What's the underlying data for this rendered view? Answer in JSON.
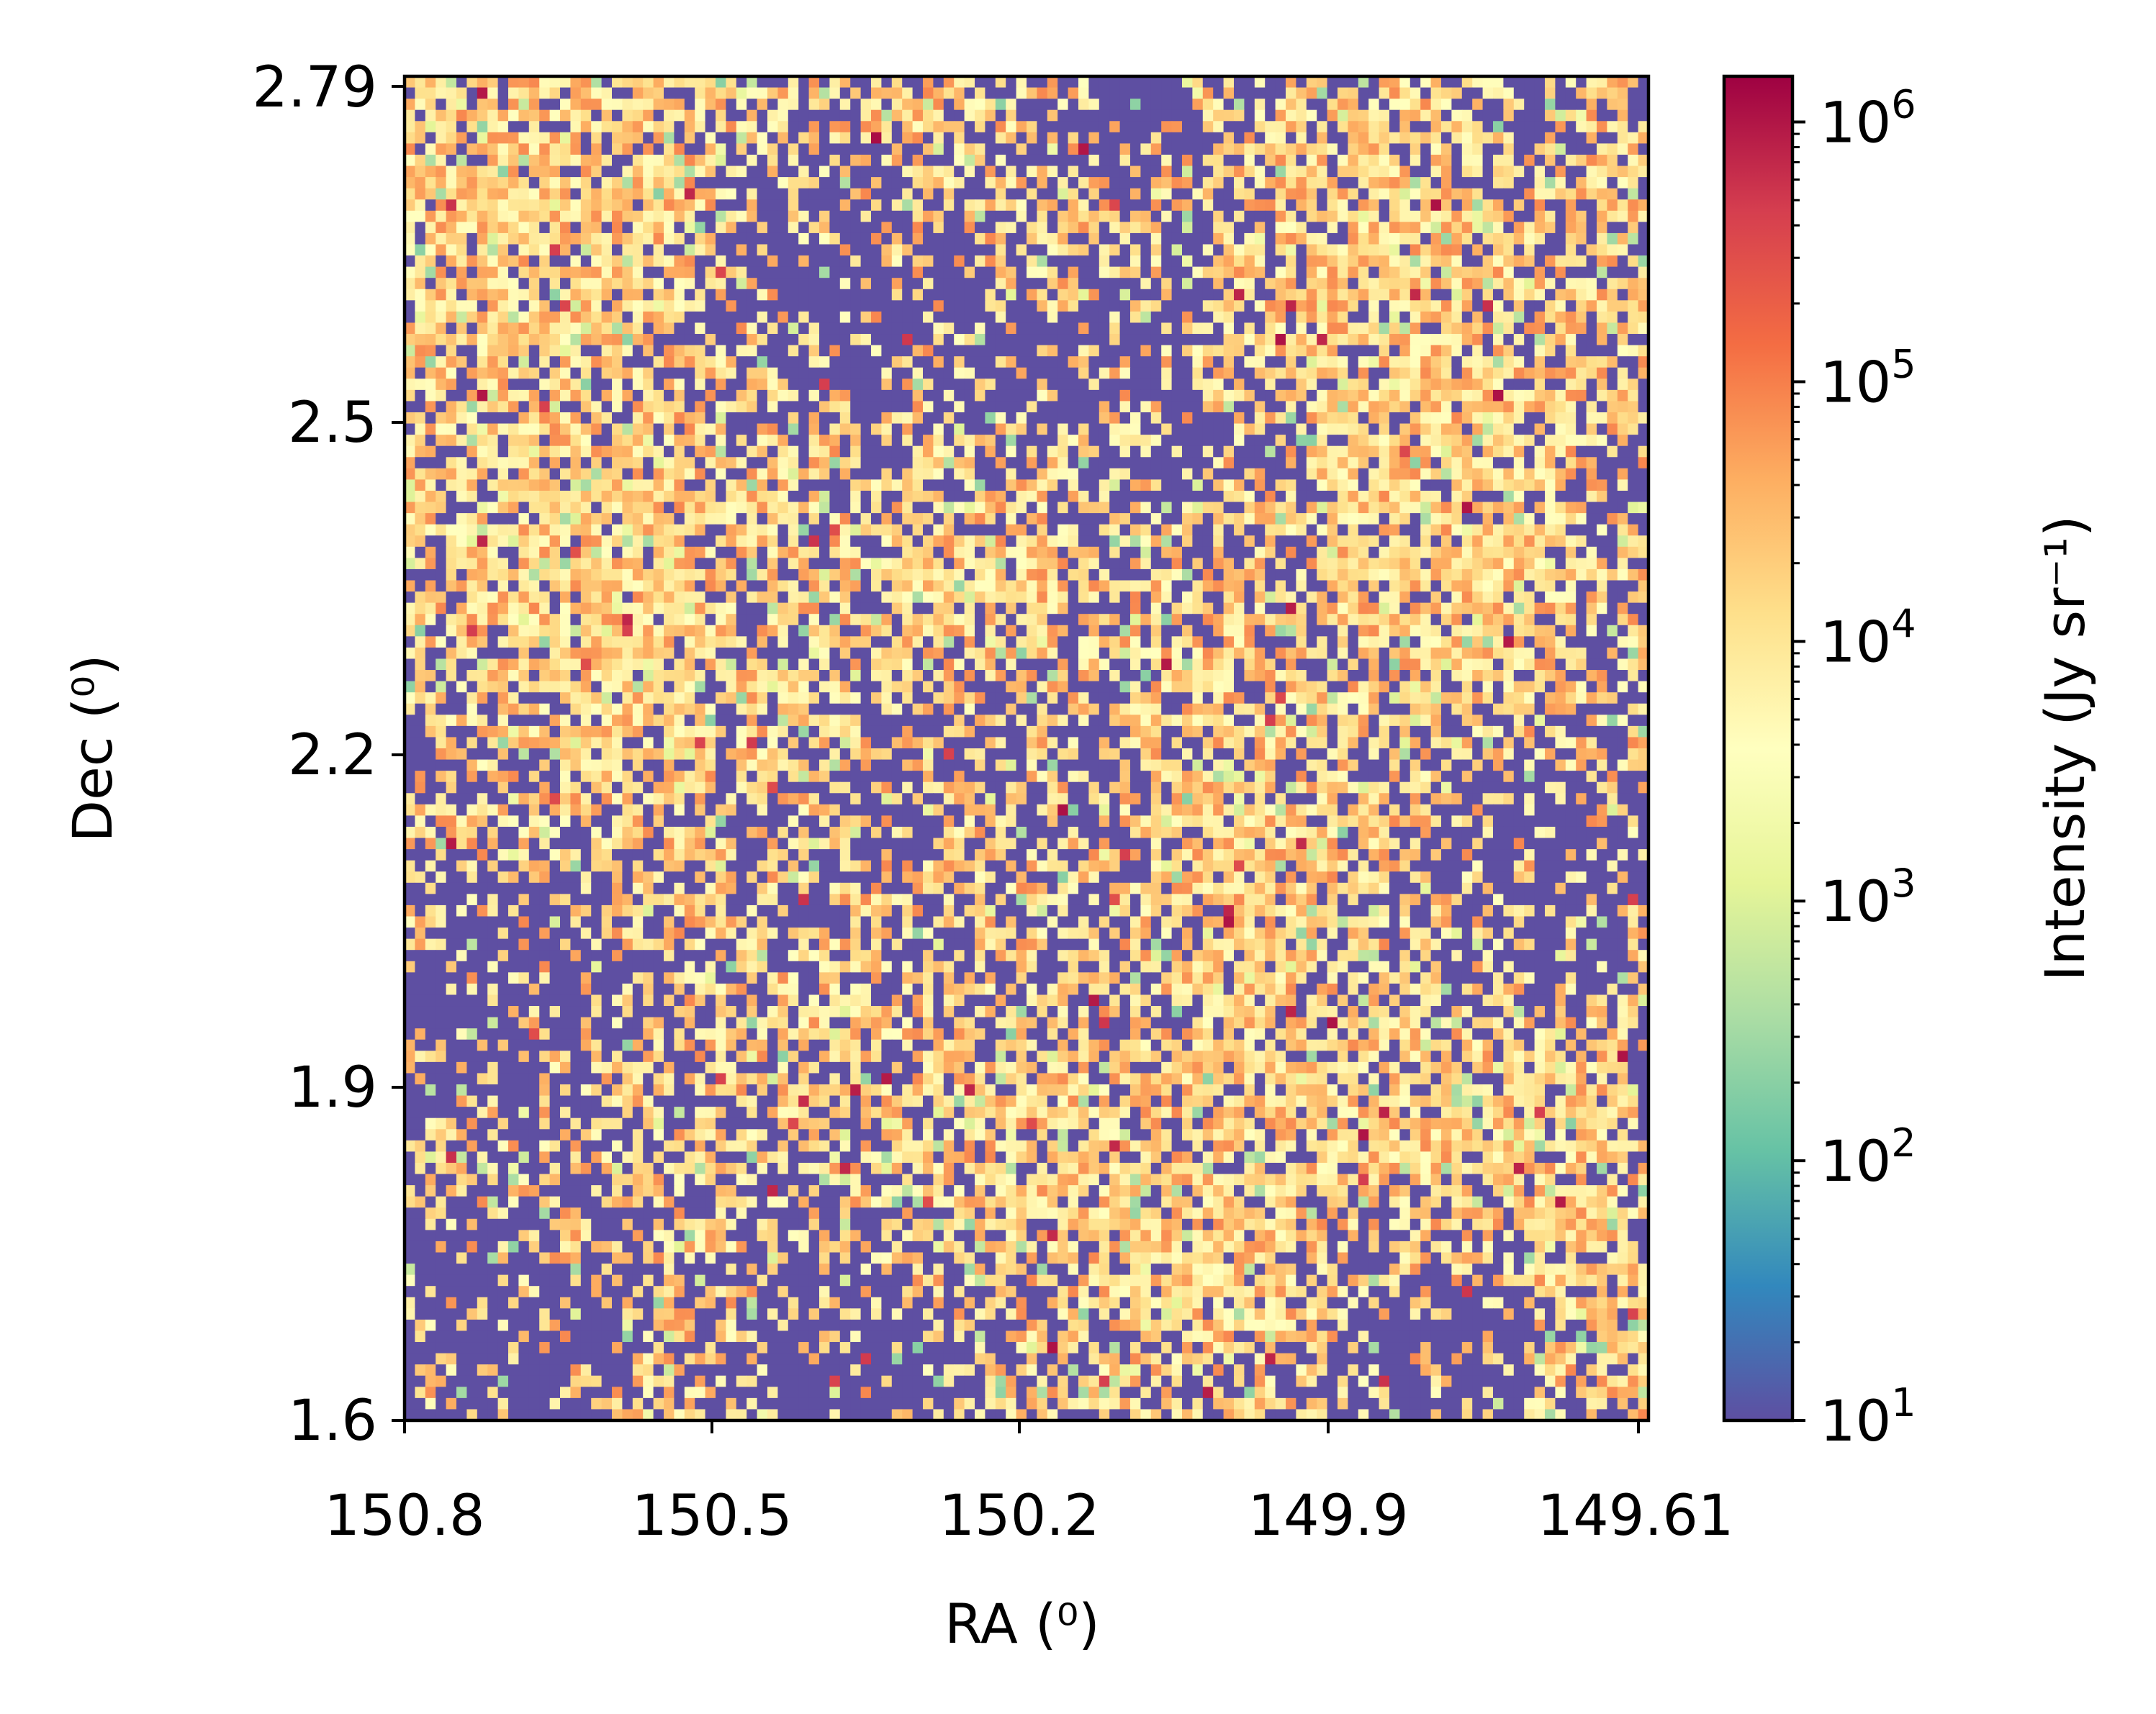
{
  "chart_data": {
    "type": "heatmap",
    "title": "",
    "xlabel": "RA (⁰)",
    "ylabel": "Dec (⁰)",
    "xlim": [
      150.8,
      149.61
    ],
    "ylim": [
      1.6,
      2.79
    ],
    "x_ticks": [
      150.8,
      150.5,
      150.2,
      149.9,
      149.61
    ],
    "x_tick_labels": [
      "150.8",
      "150.5",
      "150.2",
      "149.9",
      "149.61"
    ],
    "y_ticks": [
      1.6,
      1.9,
      2.2,
      2.5,
      2.79
    ],
    "y_tick_labels": [
      "1.6",
      "1.9",
      "2.2",
      "2.5",
      "2.79"
    ],
    "grid": false,
    "colormap": "Spectral_r",
    "colorbar": {
      "label": "Intensity (Jy sr⁻¹)",
      "scale": "log",
      "range": [
        10,
        1500000
      ],
      "ticks": [
        10,
        100,
        1000,
        10000,
        100000,
        1000000
      ],
      "tick_bases": [
        "10",
        "10",
        "10",
        "10",
        "10",
        "10"
      ],
      "tick_exponents": [
        "1",
        "2",
        "3",
        "4",
        "5",
        "6"
      ],
      "colors": [
        "#5e4fa2",
        "#3288bd",
        "#66c2a5",
        "#abdda4",
        "#e6f598",
        "#ffffbf",
        "#fee08b",
        "#fdae61",
        "#f46d43",
        "#d53e4f",
        "#9e0142"
      ]
    },
    "grid_shape": [
      120,
      120
    ],
    "empty_fraction": 0.45,
    "pixel_value_range": [
      10,
      1500000
    ]
  }
}
